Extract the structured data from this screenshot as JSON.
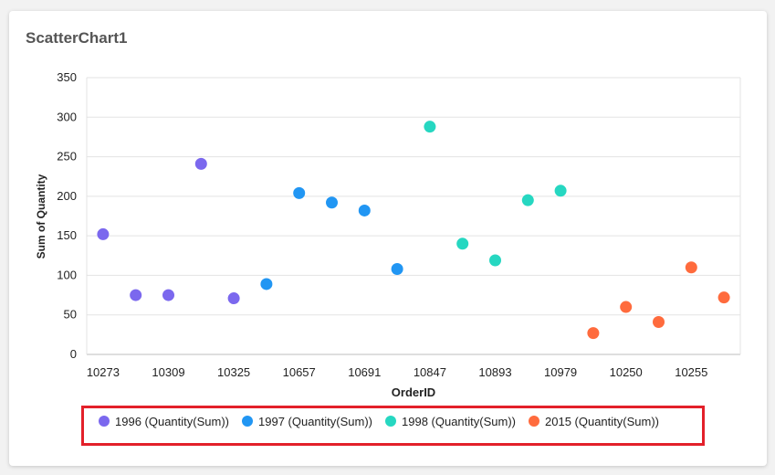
{
  "card": {
    "title": "ScatterChart1"
  },
  "chart_data": {
    "type": "scatter",
    "title": "",
    "xlabel": "OrderID",
    "ylabel": "Sum of Quantity",
    "ylim": [
      0,
      350
    ],
    "yticks": [
      0,
      50,
      100,
      150,
      200,
      250,
      300,
      350
    ],
    "grid": true,
    "legend_position": "bottom",
    "categories": [
      "10273",
      "",
      "10309",
      "",
      "10325",
      "",
      "10657",
      "",
      "10691",
      "",
      "10847",
      "",
      "10893",
      "",
      "10979",
      "",
      "10250",
      "",
      "10255",
      ""
    ],
    "series": [
      {
        "name": "1996 (Quantity(Sum))",
        "color": "#7b68ee",
        "points": [
          [
            0,
            152
          ],
          [
            1,
            75
          ],
          [
            2,
            75
          ],
          [
            3,
            241
          ],
          [
            4,
            71
          ]
        ]
      },
      {
        "name": "1997 (Quantity(Sum))",
        "color": "#2196f3",
        "points": [
          [
            5,
            89
          ],
          [
            6,
            204
          ],
          [
            7,
            192
          ],
          [
            8,
            182
          ],
          [
            9,
            108
          ]
        ]
      },
      {
        "name": "1998 (Quantity(Sum))",
        "color": "#26d7c1",
        "points": [
          [
            10,
            288
          ],
          [
            11,
            140
          ],
          [
            12,
            119
          ],
          [
            13,
            195
          ],
          [
            14,
            207
          ]
        ]
      },
      {
        "name": "2015 (Quantity(Sum))",
        "color": "#ff6b3d",
        "points": [
          [
            15,
            27
          ],
          [
            16,
            60
          ],
          [
            17,
            41
          ],
          [
            18,
            110
          ],
          [
            19,
            72
          ]
        ]
      }
    ]
  }
}
